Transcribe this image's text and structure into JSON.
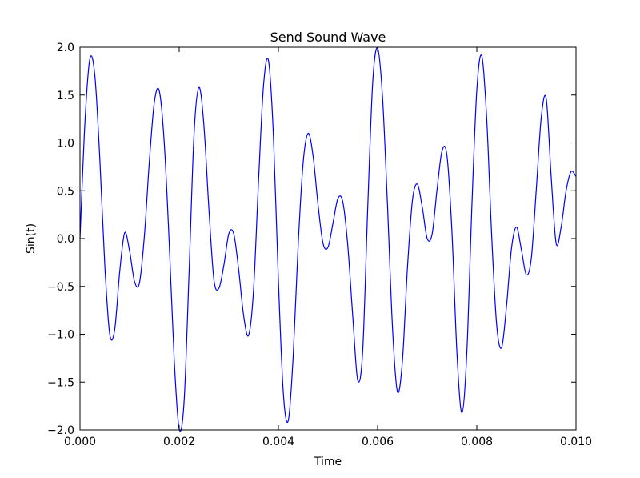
{
  "chart_data": {
    "type": "line",
    "title": "Send Sound Wave",
    "xlabel": "Time",
    "ylabel": "Sin(t)",
    "xlim": [
      0.0,
      0.01
    ],
    "ylim": [
      -2.0,
      2.0
    ],
    "grid": false,
    "line_color": "#0000ff",
    "x_ticks": [
      0.0,
      0.002,
      0.004,
      0.006,
      0.008,
      0.01
    ],
    "x_tick_labels": [
      "0.000",
      "0.002",
      "0.004",
      "0.006",
      "0.008",
      "0.010"
    ],
    "y_ticks": [
      -2.0,
      -1.5,
      -1.0,
      -0.5,
      0.0,
      0.5,
      1.0,
      1.5,
      2.0
    ],
    "y_tick_labels": [
      "−2.0",
      "−1.5",
      "−1.0",
      "−0.5",
      "0.0",
      "0.5",
      "1.0",
      "1.5",
      "2.0"
    ],
    "series": [
      {
        "x": [
          0.0,
          0.0001,
          0.0002,
          0.0003,
          0.0004,
          0.0005,
          0.0006,
          0.0007,
          0.0008,
          0.0009,
          0.001,
          0.0011,
          0.0012,
          0.0013,
          0.0014,
          0.0015,
          0.0016,
          0.0017,
          0.0018,
          0.0019,
          0.002,
          0.0021,
          0.0022,
          0.0023,
          0.0024,
          0.0025,
          0.0026,
          0.0027,
          0.0028,
          0.0029,
          0.003,
          0.0031,
          0.0032,
          0.0033,
          0.0034,
          0.0035,
          0.0036,
          0.0037,
          0.0038,
          0.0039,
          0.004,
          0.0041,
          0.0042,
          0.0043,
          0.0044,
          0.0045,
          0.0046,
          0.0047,
          0.0048,
          0.0049,
          0.005,
          0.0051,
          0.0052,
          0.0053,
          0.0054,
          0.0055,
          0.0056,
          0.0057,
          0.0058,
          0.0059,
          0.006,
          0.0061,
          0.0062,
          0.0063,
          0.0064,
          0.0065,
          0.0066,
          0.0067,
          0.0068,
          0.0069,
          0.007,
          0.0071,
          0.0072,
          0.0073,
          0.0074,
          0.0075,
          0.0076,
          0.0077,
          0.0078,
          0.0079,
          0.008,
          0.0081,
          0.0082,
          0.0083,
          0.0084,
          0.0085,
          0.0086,
          0.0087,
          0.0088,
          0.0089,
          0.009,
          0.0091,
          0.0092,
          0.0093,
          0.0094,
          0.0095,
          0.0096,
          0.0097,
          0.0098,
          0.0099,
          0.01
        ],
        "y": [
          0.0,
          1.22,
          1.88,
          1.7,
          0.83,
          -0.28,
          -1.0,
          -0.95,
          -0.35,
          0.06,
          -0.13,
          -0.45,
          -0.46,
          0.04,
          0.82,
          1.43,
          1.54,
          0.99,
          -0.06,
          -1.27,
          -1.99,
          -1.69,
          -0.34,
          1.1,
          1.58,
          1.17,
          0.3,
          -0.43,
          -0.52,
          -0.28,
          0.05,
          0.05,
          -0.33,
          -0.81,
          -1.01,
          -0.53,
          0.61,
          1.6,
          1.86,
          1.07,
          -0.44,
          -1.62,
          -1.9,
          -1.21,
          -0.05,
          0.8,
          1.1,
          0.86,
          0.35,
          -0.05,
          -0.09,
          0.16,
          0.42,
          0.38,
          -0.08,
          -0.82,
          -1.48,
          -1.17,
          0.31,
          1.62,
          1.99,
          1.47,
          0.34,
          -0.93,
          -1.6,
          -1.28,
          -0.32,
          0.39,
          0.57,
          0.33,
          0.0,
          0.05,
          0.52,
          0.92,
          0.86,
          0.06,
          -1.2,
          -1.82,
          -1.18,
          0.33,
          1.55,
          1.91,
          1.25,
          0.03,
          -0.9,
          -1.14,
          -0.7,
          -0.1,
          0.12,
          -0.12,
          -0.38,
          -0.2,
          0.52,
          1.27,
          1.46,
          0.64,
          -0.05,
          0.12,
          0.5,
          0.7,
          0.65
        ]
      }
    ]
  }
}
